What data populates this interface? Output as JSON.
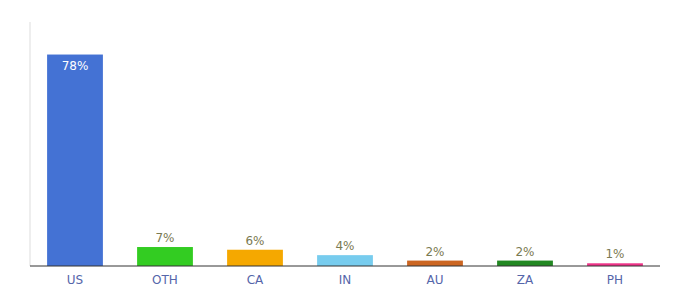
{
  "chart_data": {
    "type": "bar",
    "categories": [
      "US",
      "OTH",
      "CA",
      "IN",
      "AU",
      "ZA",
      "PH"
    ],
    "values": [
      78,
      7,
      6,
      4,
      2,
      2,
      1
    ],
    "value_labels": [
      "78%",
      "7%",
      "6%",
      "4%",
      "2%",
      "2%",
      "1%"
    ],
    "colors": [
      "#4472d4",
      "#33cc22",
      "#f5a800",
      "#77ccee",
      "#cc6622",
      "#228822",
      "#ee3388"
    ],
    "ylim": [
      0,
      90
    ],
    "data_labels": true,
    "tick_labels": "x"
  }
}
